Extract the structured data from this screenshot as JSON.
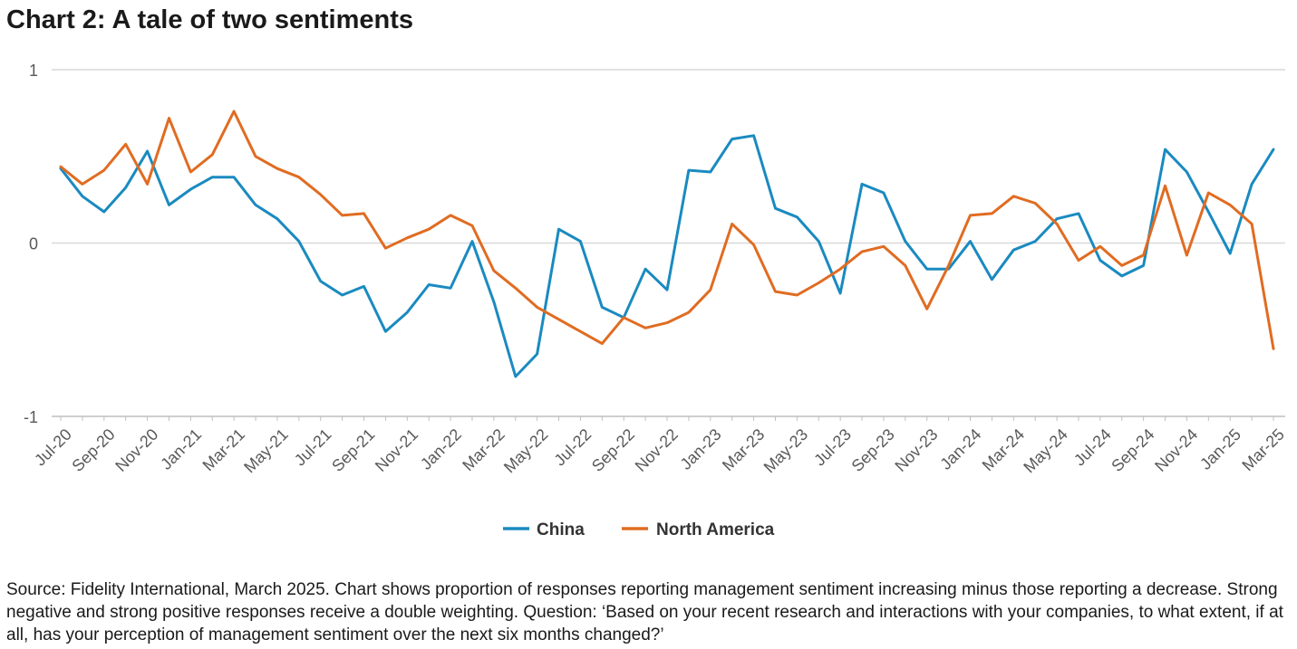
{
  "chart_data": {
    "type": "line",
    "title": "Chart 2: A tale of two sentiments",
    "xlabel": "",
    "ylabel": "",
    "ylim": [
      -1,
      1
    ],
    "yticks": [
      "-1",
      "0",
      "1"
    ],
    "grid": "horizontal",
    "legend_position": "bottom",
    "x": [
      "Jul-20",
      "Aug-20",
      "Sep-20",
      "Oct-20",
      "Nov-20",
      "Dec-20",
      "Jan-21",
      "Feb-21",
      "Mar-21",
      "Apr-21",
      "May-21",
      "Jun-21",
      "Jul-21",
      "Aug-21",
      "Sep-21",
      "Oct-21",
      "Nov-21",
      "Dec-21",
      "Jan-22",
      "Feb-22",
      "Mar-22",
      "Apr-22",
      "May-22",
      "Jun-22",
      "Jul-22",
      "Aug-22",
      "Sep-22",
      "Oct-22",
      "Nov-22",
      "Dec-22",
      "Jan-23",
      "Feb-23",
      "Mar-23",
      "Apr-23",
      "May-23",
      "Jun-23",
      "Jul-23",
      "Aug-23",
      "Sep-23",
      "Oct-23",
      "Nov-23",
      "Dec-23",
      "Jan-24",
      "Feb-24",
      "Mar-24",
      "Apr-24",
      "May-24",
      "Jun-24",
      "Jul-24",
      "Aug-24",
      "Sep-24",
      "Oct-24",
      "Nov-24",
      "Dec-24",
      "Jan-25",
      "Feb-25",
      "Mar-25"
    ],
    "xtick_labels": [
      "Jul-20",
      "Sep-20",
      "Nov-20",
      "Jan-21",
      "Mar-21",
      "May-21",
      "Jul-21",
      "Sep-21",
      "Nov-21",
      "Jan-22",
      "Mar-22",
      "May-22",
      "Jul-22",
      "Sep-22",
      "Nov-22",
      "Jan-23",
      "Mar-23",
      "May-23",
      "Jul-23",
      "Sep-23",
      "Nov-23",
      "Jan-24",
      "Mar-24",
      "May-24",
      "Jul-24",
      "Sep-24",
      "Nov-24",
      "Jan-25",
      "Mar-25"
    ],
    "series": [
      {
        "name": "China",
        "color": "#1a8ac0",
        "values": [
          0.43,
          0.27,
          0.18,
          0.32,
          0.53,
          0.22,
          0.31,
          0.38,
          0.38,
          0.22,
          0.14,
          0.01,
          -0.22,
          -0.3,
          -0.25,
          -0.51,
          -0.4,
          -0.24,
          -0.26,
          0.01,
          -0.34,
          -0.77,
          -0.64,
          0.08,
          0.01,
          -0.37,
          -0.43,
          -0.15,
          -0.27,
          0.42,
          0.41,
          0.6,
          0.62,
          0.2,
          0.15,
          0.01,
          -0.29,
          0.34,
          0.29,
          0.01,
          -0.15,
          -0.15,
          0.01,
          -0.21,
          -0.04,
          0.01,
          0.14,
          0.17,
          -0.1,
          -0.19,
          -0.13,
          0.54,
          0.41,
          0.18,
          -0.06,
          0.34,
          0.54
        ]
      },
      {
        "name": "North America",
        "color": "#e06c22",
        "values": [
          0.44,
          0.34,
          0.42,
          0.57,
          0.34,
          0.72,
          0.41,
          0.51,
          0.76,
          0.5,
          0.43,
          0.38,
          0.28,
          0.16,
          0.17,
          -0.03,
          0.03,
          0.08,
          0.16,
          0.1,
          -0.16,
          -0.26,
          -0.37,
          -0.44,
          -0.51,
          -0.58,
          -0.43,
          -0.49,
          -0.46,
          -0.4,
          -0.27,
          0.11,
          -0.01,
          -0.28,
          -0.3,
          -0.23,
          -0.15,
          -0.05,
          -0.02,
          -0.13,
          -0.38,
          -0.13,
          0.16,
          0.17,
          0.27,
          0.23,
          0.11,
          -0.1,
          -0.02,
          -0.13,
          -0.07,
          0.33,
          -0.07,
          0.29,
          0.22,
          0.11,
          -0.61
        ]
      }
    ]
  },
  "source_note": "Source: Fidelity International, March 2025. Chart shows proportion of responses reporting management sentiment increasing minus those reporting a decrease. Strong negative and strong positive responses receive a double weighting. Question: ‘Based on your recent research and interactions with your companies, to what extent, if at all, has your perception of management sentiment over the next six months changed?’",
  "colors": {
    "gridline": "#d9d9d9",
    "axis": "#bfbfbf",
    "tick_text": "#595959"
  }
}
